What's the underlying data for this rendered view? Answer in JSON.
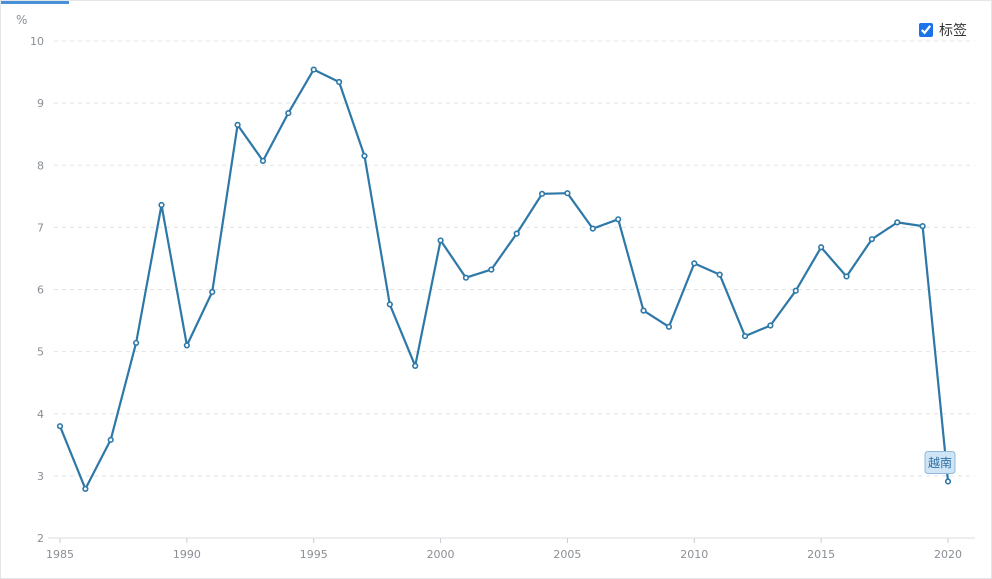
{
  "legend": {
    "label": "标签",
    "checked": true
  },
  "chart_data": {
    "type": "line",
    "ylabel": "%",
    "ylim": [
      2,
      10
    ],
    "yticks": [
      "2",
      "3",
      "4",
      "5",
      "6",
      "7",
      "8",
      "9",
      "10"
    ],
    "xlim": [
      1985,
      2020
    ],
    "xticks": [
      "1985",
      "1990",
      "1995",
      "2000",
      "2005",
      "2010",
      "2015",
      "2020"
    ],
    "grid": true,
    "series_color": "#2e78a8",
    "series": [
      {
        "name": "越南",
        "x": [
          1985,
          1986,
          1987,
          1988,
          1989,
          1990,
          1991,
          1992,
          1993,
          1994,
          1995,
          1996,
          1997,
          1998,
          1999,
          2000,
          2001,
          2002,
          2003,
          2004,
          2005,
          2006,
          2007,
          2008,
          2009,
          2010,
          2011,
          2012,
          2013,
          2014,
          2015,
          2016,
          2017,
          2018,
          2019,
          2020
        ],
        "values": [
          3.8,
          2.79,
          3.58,
          5.14,
          7.36,
          5.1,
          5.96,
          8.65,
          8.07,
          8.84,
          9.54,
          9.34,
          8.15,
          5.76,
          4.77,
          6.79,
          6.19,
          6.32,
          6.9,
          7.54,
          7.55,
          6.98,
          7.13,
          5.66,
          5.4,
          6.42,
          6.24,
          5.25,
          5.42,
          5.98,
          6.68,
          6.21,
          6.81,
          7.08,
          7.02,
          2.91
        ]
      }
    ]
  }
}
